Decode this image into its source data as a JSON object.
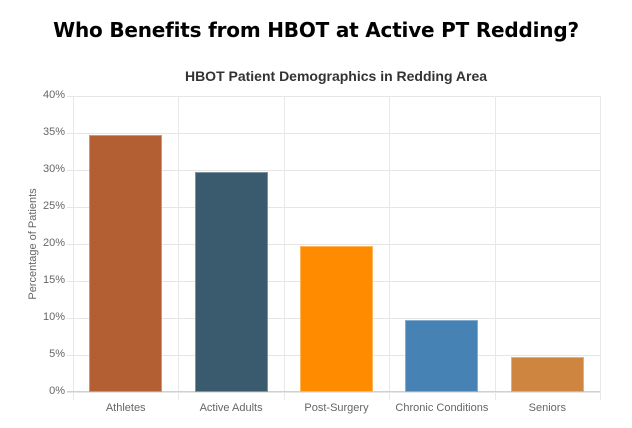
{
  "page": {
    "title": "Who Benefits from HBOT at Active PT Redding?"
  },
  "chart_data": {
    "type": "bar",
    "title": "HBOT Patient Demographics in Redding Area",
    "xlabel": "",
    "ylabel": "Percentage of Patients",
    "categories": [
      "Athletes",
      "Active Adults",
      "Post-Surgery",
      "Chronic Conditions",
      "Seniors"
    ],
    "values": [
      35,
      30,
      20,
      10,
      5
    ],
    "colors": [
      "#b35f33",
      "#3a5a6e",
      "#ff8c00",
      "#4682b4",
      "#cd853f"
    ],
    "ylim": [
      0,
      40
    ],
    "yticks": [
      "0%",
      "5%",
      "10%",
      "15%",
      "20%",
      "25%",
      "30%",
      "35%",
      "40%"
    ],
    "grid": true,
    "legend": "none"
  }
}
